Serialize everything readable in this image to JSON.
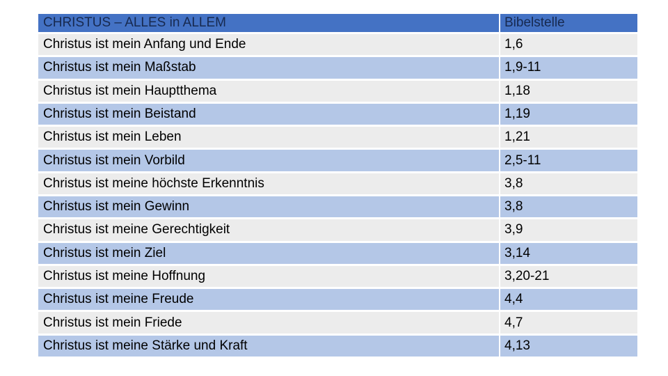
{
  "slide": {
    "background": "#FFFFFF"
  },
  "table": {
    "title": "CHRISTUS – ALLES in ALLEM",
    "ref_header": "Bibelstelle",
    "rows": [
      {
        "label": "Christus ist mein Anfang und Ende",
        "ref": "1,6"
      },
      {
        "label": "Christus ist mein Maßstab",
        "ref": "1,9-11"
      },
      {
        "label": "Christus ist mein Hauptthema",
        "ref": "1,18"
      },
      {
        "label": "Christus ist mein Beistand",
        "ref": "1,19"
      },
      {
        "label": "Christus ist mein Leben",
        "ref": "1,21"
      },
      {
        "label": "Christus ist mein Vorbild",
        "ref": "2,5-11"
      },
      {
        "label": "Christus ist meine höchste Erkenntnis",
        "ref": "3,8"
      },
      {
        "label": "Christus ist mein Gewinn",
        "ref": "3,8"
      },
      {
        "label": "Christus ist meine Gerechtigkeit",
        "ref": "3,9"
      },
      {
        "label": "Christus ist mein Ziel",
        "ref": "3,14"
      },
      {
        "label": "Christus ist meine Hoffnung",
        "ref": "3,20-21"
      },
      {
        "label": "Christus ist meine Freude",
        "ref": "4,4"
      },
      {
        "label": "Christus ist mein Friede",
        "ref": "4,7"
      },
      {
        "label": "Christus ist meine Stärke und Kraft",
        "ref": "4,13"
      }
    ]
  },
  "colors": {
    "header_bg": "#4472C4",
    "header_text": "#17294F",
    "band_gray": "#ECECEC",
    "band_blue": "#B4C7E7",
    "body_text": "#000000",
    "slide_bg": "#FFFFFF"
  }
}
